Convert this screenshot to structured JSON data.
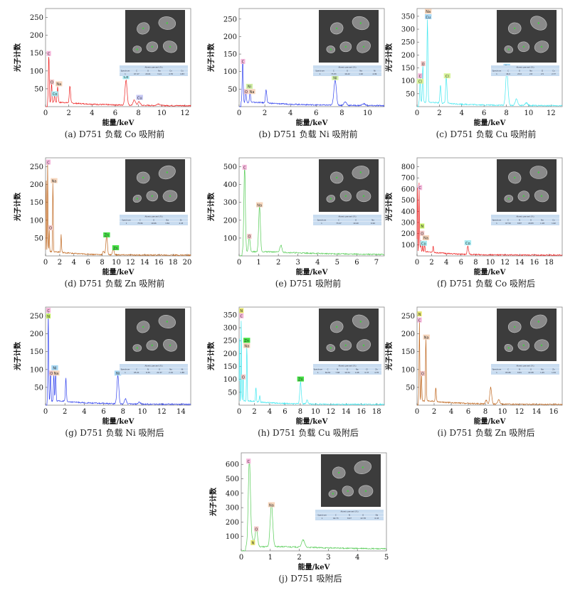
{
  "figure": {
    "ylabel": "光子计数",
    "xlabel": "能量/keV",
    "table_title": "Atomic percent (%)",
    "table_row_label": "Spectrum"
  },
  "chart_data": [
    {
      "type": "line",
      "id": "a",
      "caption": "(a) D751 负载 Co 吸附前",
      "color": "#ee2222",
      "xlabel": "能量/keV",
      "ylabel": "光子计数",
      "xlim": [
        0,
        12.5
      ],
      "ylim": [
        0,
        275
      ],
      "xticks": [
        0,
        2,
        4,
        6,
        8,
        10,
        12
      ],
      "yticks": [
        50,
        100,
        150,
        200,
        250
      ],
      "peaks": [
        [
          0.28,
          135
        ],
        [
          0.52,
          55
        ],
        [
          0.78,
          20
        ],
        [
          1.04,
          45
        ],
        [
          2.1,
          48
        ],
        [
          6.93,
          70
        ],
        [
          7.65,
          15
        ],
        [
          8.05,
          10
        ],
        [
          9.7,
          5
        ]
      ],
      "labels": [
        {
          "text": "C",
          "x": 0.28,
          "y": 148,
          "bg": "#f6b8dc"
        },
        {
          "text": "O",
          "x": 0.55,
          "y": 68,
          "bg": "#f3c6c6"
        },
        {
          "text": "Na",
          "x": 1.15,
          "y": 63,
          "bg": "#f7d6bc"
        },
        {
          "text": "Co",
          "x": 0.8,
          "y": 35,
          "bg": "#a9ecf3"
        },
        {
          "text": "Co",
          "x": 6.93,
          "y": 83,
          "bg": "#a9ecf3"
        },
        {
          "text": "Cu",
          "x": 8.1,
          "y": 25,
          "bg": "#c6c8f4"
        }
      ],
      "table": {
        "headers": [
          "Spectrum",
          "C",
          "O",
          "Na",
          "Co",
          "Cu"
        ],
        "rows": [
          [
            "1",
            "67.27",
            "20.01",
            "3.11",
            "4.78",
            "4.83"
          ]
        ]
      }
    },
    {
      "type": "line",
      "id": "b",
      "caption": "(b) D751 负载 Ni 吸附前",
      "color": "#3344ee",
      "xlabel": "能量/keV",
      "ylabel": "光子计数",
      "xlim": [
        0,
        11.3
      ],
      "ylim": [
        0,
        280
      ],
      "xticks": [
        0,
        2,
        4,
        6,
        8,
        10
      ],
      "yticks": [
        50,
        100,
        150,
        200,
        250
      ],
      "peaks": [
        [
          0.28,
          128
        ],
        [
          0.52,
          35
        ],
        [
          0.85,
          30
        ],
        [
          2.1,
          38
        ],
        [
          7.47,
          72
        ],
        [
          8.26,
          10
        ],
        [
          9.7,
          5
        ]
      ],
      "labels": [
        {
          "text": "C",
          "x": 0.3,
          "y": 128,
          "bg": "#f6b8dc"
        },
        {
          "text": "Ni",
          "x": 0.8,
          "y": 57,
          "bg": "#d2f0a6"
        },
        {
          "text": "O",
          "x": 0.55,
          "y": 42,
          "bg": "#f3c6c6"
        },
        {
          "text": "Na",
          "x": 1.0,
          "y": 42,
          "bg": "#f7d6bc"
        },
        {
          "text": "Ni",
          "x": 7.47,
          "y": 82,
          "bg": "#d2f0a6"
        }
      ],
      "table": {
        "headers": [
          "Spectrum",
          "C",
          "O",
          "Na",
          "Ni"
        ],
        "rows": [
          [
            "1",
            "73.83",
            "16.22",
            "1.92",
            "4.99"
          ]
        ]
      }
    },
    {
      "type": "line",
      "id": "c",
      "caption": "(c) D751 负载 Cu 吸附前",
      "color": "#44e8f0",
      "xlabel": "能量/keV",
      "ylabel": "光子计数",
      "xlim": [
        0,
        13
      ],
      "ylim": [
        0,
        380
      ],
      "xticks": [
        0,
        2,
        4,
        6,
        8,
        10,
        12
      ],
      "yticks": [
        50,
        100,
        150,
        200,
        250,
        300,
        350
      ],
      "peaks": [
        [
          0.28,
          95
        ],
        [
          0.52,
          150
        ],
        [
          0.93,
          320
        ],
        [
          2.1,
          70
        ],
        [
          2.62,
          105
        ],
        [
          8.04,
          135
        ],
        [
          8.9,
          25
        ],
        [
          9.8,
          10
        ]
      ],
      "labels": [
        {
          "text": "Na",
          "x": 1.0,
          "y": 368,
          "bg": "#f7d6bc"
        },
        {
          "text": "Cu",
          "x": 1.0,
          "y": 347,
          "bg": "#a8d8f4"
        },
        {
          "text": "O",
          "x": 0.55,
          "y": 165,
          "bg": "#f3c6c6"
        },
        {
          "text": "C",
          "x": 0.28,
          "y": 118,
          "bg": "#f6b8dc"
        },
        {
          "text": "Cl",
          "x": 0.28,
          "y": 97,
          "bg": "#d8f49a"
        },
        {
          "text": "Cl",
          "x": 2.7,
          "y": 118,
          "bg": "#d8f49a"
        },
        {
          "text": "Cu",
          "x": 8.04,
          "y": 155,
          "bg": "#a8d8f4"
        }
      ],
      "table": {
        "headers": [
          "Spectrum",
          "C",
          "O",
          "Na",
          "Cl",
          "Cu"
        ],
        "rows": [
          [
            "1",
            "46.6",
            "23.0",
            "2.8",
            "2.5",
            "2.77"
          ]
        ]
      }
    },
    {
      "type": "line",
      "id": "d",
      "caption": "(d) D751 负载 Zn 吸附前",
      "color": "#c06820",
      "xlabel": "能量/keV",
      "ylabel": "光子计数",
      "xlim": [
        0,
        20.5
      ],
      "ylim": [
        0,
        275
      ],
      "xticks": [
        0,
        2,
        4,
        6,
        8,
        10,
        12,
        14,
        16,
        18,
        20
      ],
      "yticks": [
        50,
        100,
        150,
        200,
        250
      ],
      "peaks": [
        [
          0.08,
          240
        ],
        [
          0.3,
          260
        ],
        [
          0.52,
          70
        ],
        [
          1.04,
          205
        ],
        [
          2.2,
          50
        ],
        [
          8.2,
          10
        ],
        [
          8.63,
          55
        ],
        [
          9.57,
          15
        ]
      ],
      "labels": [
        {
          "text": "C",
          "x": 0.4,
          "y": 262,
          "bg": "#f6b8dc"
        },
        {
          "text": "Na",
          "x": 1.2,
          "y": 210,
          "bg": "#f7d6bc"
        },
        {
          "text": "O",
          "x": 0.7,
          "y": 78,
          "bg": "#f3c6c6"
        },
        {
          "text": "Zn",
          "x": 8.63,
          "y": 58,
          "bg": "#44e044"
        },
        {
          "text": "Zn",
          "x": 9.9,
          "y": 22,
          "bg": "#44e044"
        }
      ],
      "table": {
        "headers": [
          "Spectrum",
          "C",
          "O",
          "Na",
          "Zn"
        ],
        "rows": [
          [
            "1",
            "75.84",
            "19.66",
            "3.84",
            "4.43"
          ]
        ]
      }
    },
    {
      "type": "line",
      "id": "e",
      "caption": "(e) D751 吸附前",
      "color": "#55cc55",
      "xlabel": "能量/keV",
      "ylabel": "光子计数",
      "xlim": [
        0,
        7.4
      ],
      "ylim": [
        0,
        550
      ],
      "xticks": [
        0,
        1,
        2,
        3,
        4,
        5,
        6,
        7
      ],
      "yticks": [
        100,
        200,
        300,
        400,
        500
      ],
      "peaks": [
        [
          0.28,
          480
        ],
        [
          0.52,
          85
        ],
        [
          1.04,
          260
        ],
        [
          2.13,
          40
        ]
      ],
      "labels": [
        {
          "text": "C",
          "x": 0.28,
          "y": 495,
          "bg": "#f6b8dc"
        },
        {
          "text": "O",
          "x": 0.52,
          "y": 108,
          "bg": "#f3c6c6"
        },
        {
          "text": "Na",
          "x": 1.04,
          "y": 285,
          "bg": "#f7d6bc"
        }
      ],
      "table": {
        "headers": [
          "Spectrum",
          "C",
          "O",
          "Na"
        ],
        "rows": [
          [
            "1",
            "73.27",
            "19.49",
            "6.94"
          ]
        ]
      }
    },
    {
      "type": "line",
      "id": "f",
      "caption": "(f) D751 负载 Co 吸附后",
      "color": "#ee2222",
      "xlabel": "能量/keV",
      "ylabel": "光子计数",
      "xlim": [
        0,
        19.8
      ],
      "ylim": [
        0,
        880
      ],
      "xticks": [
        0,
        2,
        4,
        6,
        8,
        10,
        12,
        14,
        16,
        18
      ],
      "yticks": [
        100,
        200,
        300,
        400,
        500,
        600,
        700,
        800
      ],
      "peaks": [
        [
          0.06,
          650
        ],
        [
          0.28,
          620
        ],
        [
          0.39,
          60
        ],
        [
          0.52,
          100
        ],
        [
          0.78,
          80
        ],
        [
          1.04,
          75
        ],
        [
          2.2,
          55
        ],
        [
          6.93,
          75
        ]
      ],
      "labels": [
        {
          "text": "C",
          "x": 0.4,
          "y": 610,
          "bg": "#f6b8dc"
        },
        {
          "text": "N",
          "x": 0.7,
          "y": 265,
          "bg": "#c8f06a"
        },
        {
          "text": "O",
          "x": 0.7,
          "y": 200,
          "bg": "#f3c6c6"
        },
        {
          "text": "Na",
          "x": 1.2,
          "y": 160,
          "bg": "#f7d6bc"
        },
        {
          "text": "Co",
          "x": 0.9,
          "y": 110,
          "bg": "#a9ecf3"
        },
        {
          "text": "Co",
          "x": 6.93,
          "y": 115,
          "bg": "#a9ecf3"
        }
      ],
      "table": {
        "headers": [
          "Spectrum",
          "C",
          "N",
          "O",
          "Na",
          "Co"
        ],
        "rows": [
          [
            "1",
            "67.50",
            "8.87",
            "20.83",
            "1.18",
            "1.62"
          ]
        ]
      }
    },
    {
      "type": "line",
      "id": "g",
      "caption": "(g) D751 负载 Ni 吸附后",
      "color": "#3344ee",
      "xlabel": "能量/keV",
      "ylabel": "光子计数",
      "xlim": [
        0,
        15
      ],
      "ylim": [
        0,
        275
      ],
      "xticks": [
        0,
        2,
        4,
        6,
        8,
        10,
        12,
        14
      ],
      "yticks": [
        50,
        100,
        150,
        200,
        250
      ],
      "peaks": [
        [
          0.28,
          255
        ],
        [
          0.52,
          85
        ],
        [
          0.85,
          75
        ],
        [
          1.04,
          80
        ],
        [
          2.1,
          65
        ],
        [
          7.47,
          80
        ],
        [
          8.26,
          15
        ],
        [
          9.7,
          5
        ]
      ],
      "labels": [
        {
          "text": "C",
          "x": 0.3,
          "y": 265,
          "bg": "#f6b8dc"
        },
        {
          "text": "N",
          "x": 0.3,
          "y": 249,
          "bg": "#c8f06a"
        },
        {
          "text": "Ni",
          "x": 0.95,
          "y": 104,
          "bg": "#a8d8f4"
        },
        {
          "text": "O",
          "x": 0.6,
          "y": 89,
          "bg": "#f3c6c6"
        },
        {
          "text": "Na",
          "x": 1.1,
          "y": 89,
          "bg": "#f7d6bc"
        },
        {
          "text": "Ni",
          "x": 7.47,
          "y": 89,
          "bg": "#a8d8f4"
        }
      ],
      "table": {
        "headers": [
          "Spectrum",
          "C",
          "N",
          "O",
          "Na",
          "Ni"
        ],
        "rows": [
          [
            "1",
            "65.21",
            "8.35",
            "22.37",
            "2.19",
            "1.88"
          ]
        ]
      }
    },
    {
      "type": "line",
      "id": "h",
      "caption": "(h) D751 负载 Cu 吸附后",
      "color": "#44e8f0",
      "xlabel": "能量/keV",
      "ylabel": "光子计数",
      "xlim": [
        0,
        19
      ],
      "ylim": [
        0,
        380
      ],
      "xticks": [
        0,
        2,
        4,
        6,
        8,
        10,
        12,
        14,
        16,
        18
      ],
      "yticks": [
        50,
        100,
        150,
        200,
        250,
        300,
        350
      ],
      "peaks": [
        [
          0.05,
          260
        ],
        [
          0.28,
          320
        ],
        [
          0.52,
          105
        ],
        [
          1.01,
          225
        ],
        [
          2.2,
          55
        ],
        [
          2.7,
          25
        ],
        [
          8.04,
          85
        ],
        [
          8.9,
          15
        ]
      ],
      "labels": [
        {
          "text": "N",
          "x": 0.3,
          "y": 365,
          "bg": "#e8e870"
        },
        {
          "text": "C",
          "x": 0.3,
          "y": 345,
          "bg": "#f6b8dc"
        },
        {
          "text": "Zn",
          "x": 1.0,
          "y": 250,
          "bg": "#44e044"
        },
        {
          "text": "Na",
          "x": 1.0,
          "y": 230,
          "bg": "#f7d6bc"
        },
        {
          "text": "O",
          "x": 0.55,
          "y": 108,
          "bg": "#f3c6c6"
        },
        {
          "text": "Zn",
          "x": 8.04,
          "y": 100,
          "bg": "#44e044"
        }
      ],
      "table": {
        "headers": [
          "Spectrum",
          "C",
          "N",
          "O",
          "Na",
          "Cl",
          "Zn"
        ],
        "rows": [
          [
            "1",
            "64.81",
            "7.68",
            "19.34",
            "1.68",
            "0.37",
            "4.78"
          ]
        ]
      }
    },
    {
      "type": "line",
      "id": "i",
      "caption": "(i) D751 负载 Zn 吸附后",
      "color": "#c06820",
      "xlabel": "能量/keV",
      "ylabel": "光子计数",
      "xlim": [
        0,
        17
      ],
      "ylim": [
        0,
        275
      ],
      "xticks": [
        0,
        2,
        4,
        6,
        8,
        10,
        12,
        14,
        16
      ],
      "yticks": [
        50,
        100,
        150,
        200,
        250
      ],
      "peaks": [
        [
          0.28,
          225
        ],
        [
          0.52,
          80
        ],
        [
          1.04,
          180
        ],
        [
          2.2,
          40
        ],
        [
          8.1,
          10
        ],
        [
          8.63,
          47
        ],
        [
          9.57,
          12
        ]
      ],
      "labels": [
        {
          "text": "N",
          "x": 0.3,
          "y": 255,
          "bg": "#e8e870"
        },
        {
          "text": "C",
          "x": 0.3,
          "y": 238,
          "bg": "#f6b8dc"
        },
        {
          "text": "Na",
          "x": 1.1,
          "y": 190,
          "bg": "#f7d6bc"
        },
        {
          "text": "O",
          "x": 0.65,
          "y": 88,
          "bg": "#f3c6c6"
        }
      ],
      "table": {
        "headers": [
          "Spectrum",
          "C",
          "N",
          "O",
          "Na",
          "Zn"
        ],
        "rows": [
          [
            "1",
            "65.86",
            "8.81",
            "22.08",
            "1.45",
            "1.54"
          ]
        ]
      }
    },
    {
      "type": "line",
      "id": "j",
      "caption": "(j) D751 吸附后",
      "color": "#55cc55",
      "xlabel": "能量/keV",
      "ylabel": "光子计数",
      "xlim": [
        0,
        5
      ],
      "ylim": [
        0,
        680
      ],
      "xticks": [
        0,
        1,
        2,
        3,
        4,
        5
      ],
      "yticks": [
        100,
        200,
        300,
        400,
        500,
        600
      ],
      "peaks": [
        [
          0.28,
          610
        ],
        [
          0.39,
          50
        ],
        [
          0.52,
          135
        ],
        [
          1.04,
          295
        ],
        [
          2.13,
          50
        ]
      ],
      "labels": [
        {
          "text": "C",
          "x": 0.25,
          "y": 620,
          "bg": "#f6b8dc"
        },
        {
          "text": "N",
          "x": 0.4,
          "y": 55,
          "bg": "#e8e870"
        },
        {
          "text": "O",
          "x": 0.52,
          "y": 150,
          "bg": "#f3c6c6"
        },
        {
          "text": "Na",
          "x": 1.04,
          "y": 318,
          "bg": "#f7d6bc"
        }
      ],
      "table": {
        "headers": [
          "Spectrum",
          "C",
          "N",
          "O",
          "Na"
        ],
        "rows": [
          [
            "1",
            "62.73",
            "8.07",
            "22.78",
            "6.43"
          ]
        ]
      }
    }
  ]
}
